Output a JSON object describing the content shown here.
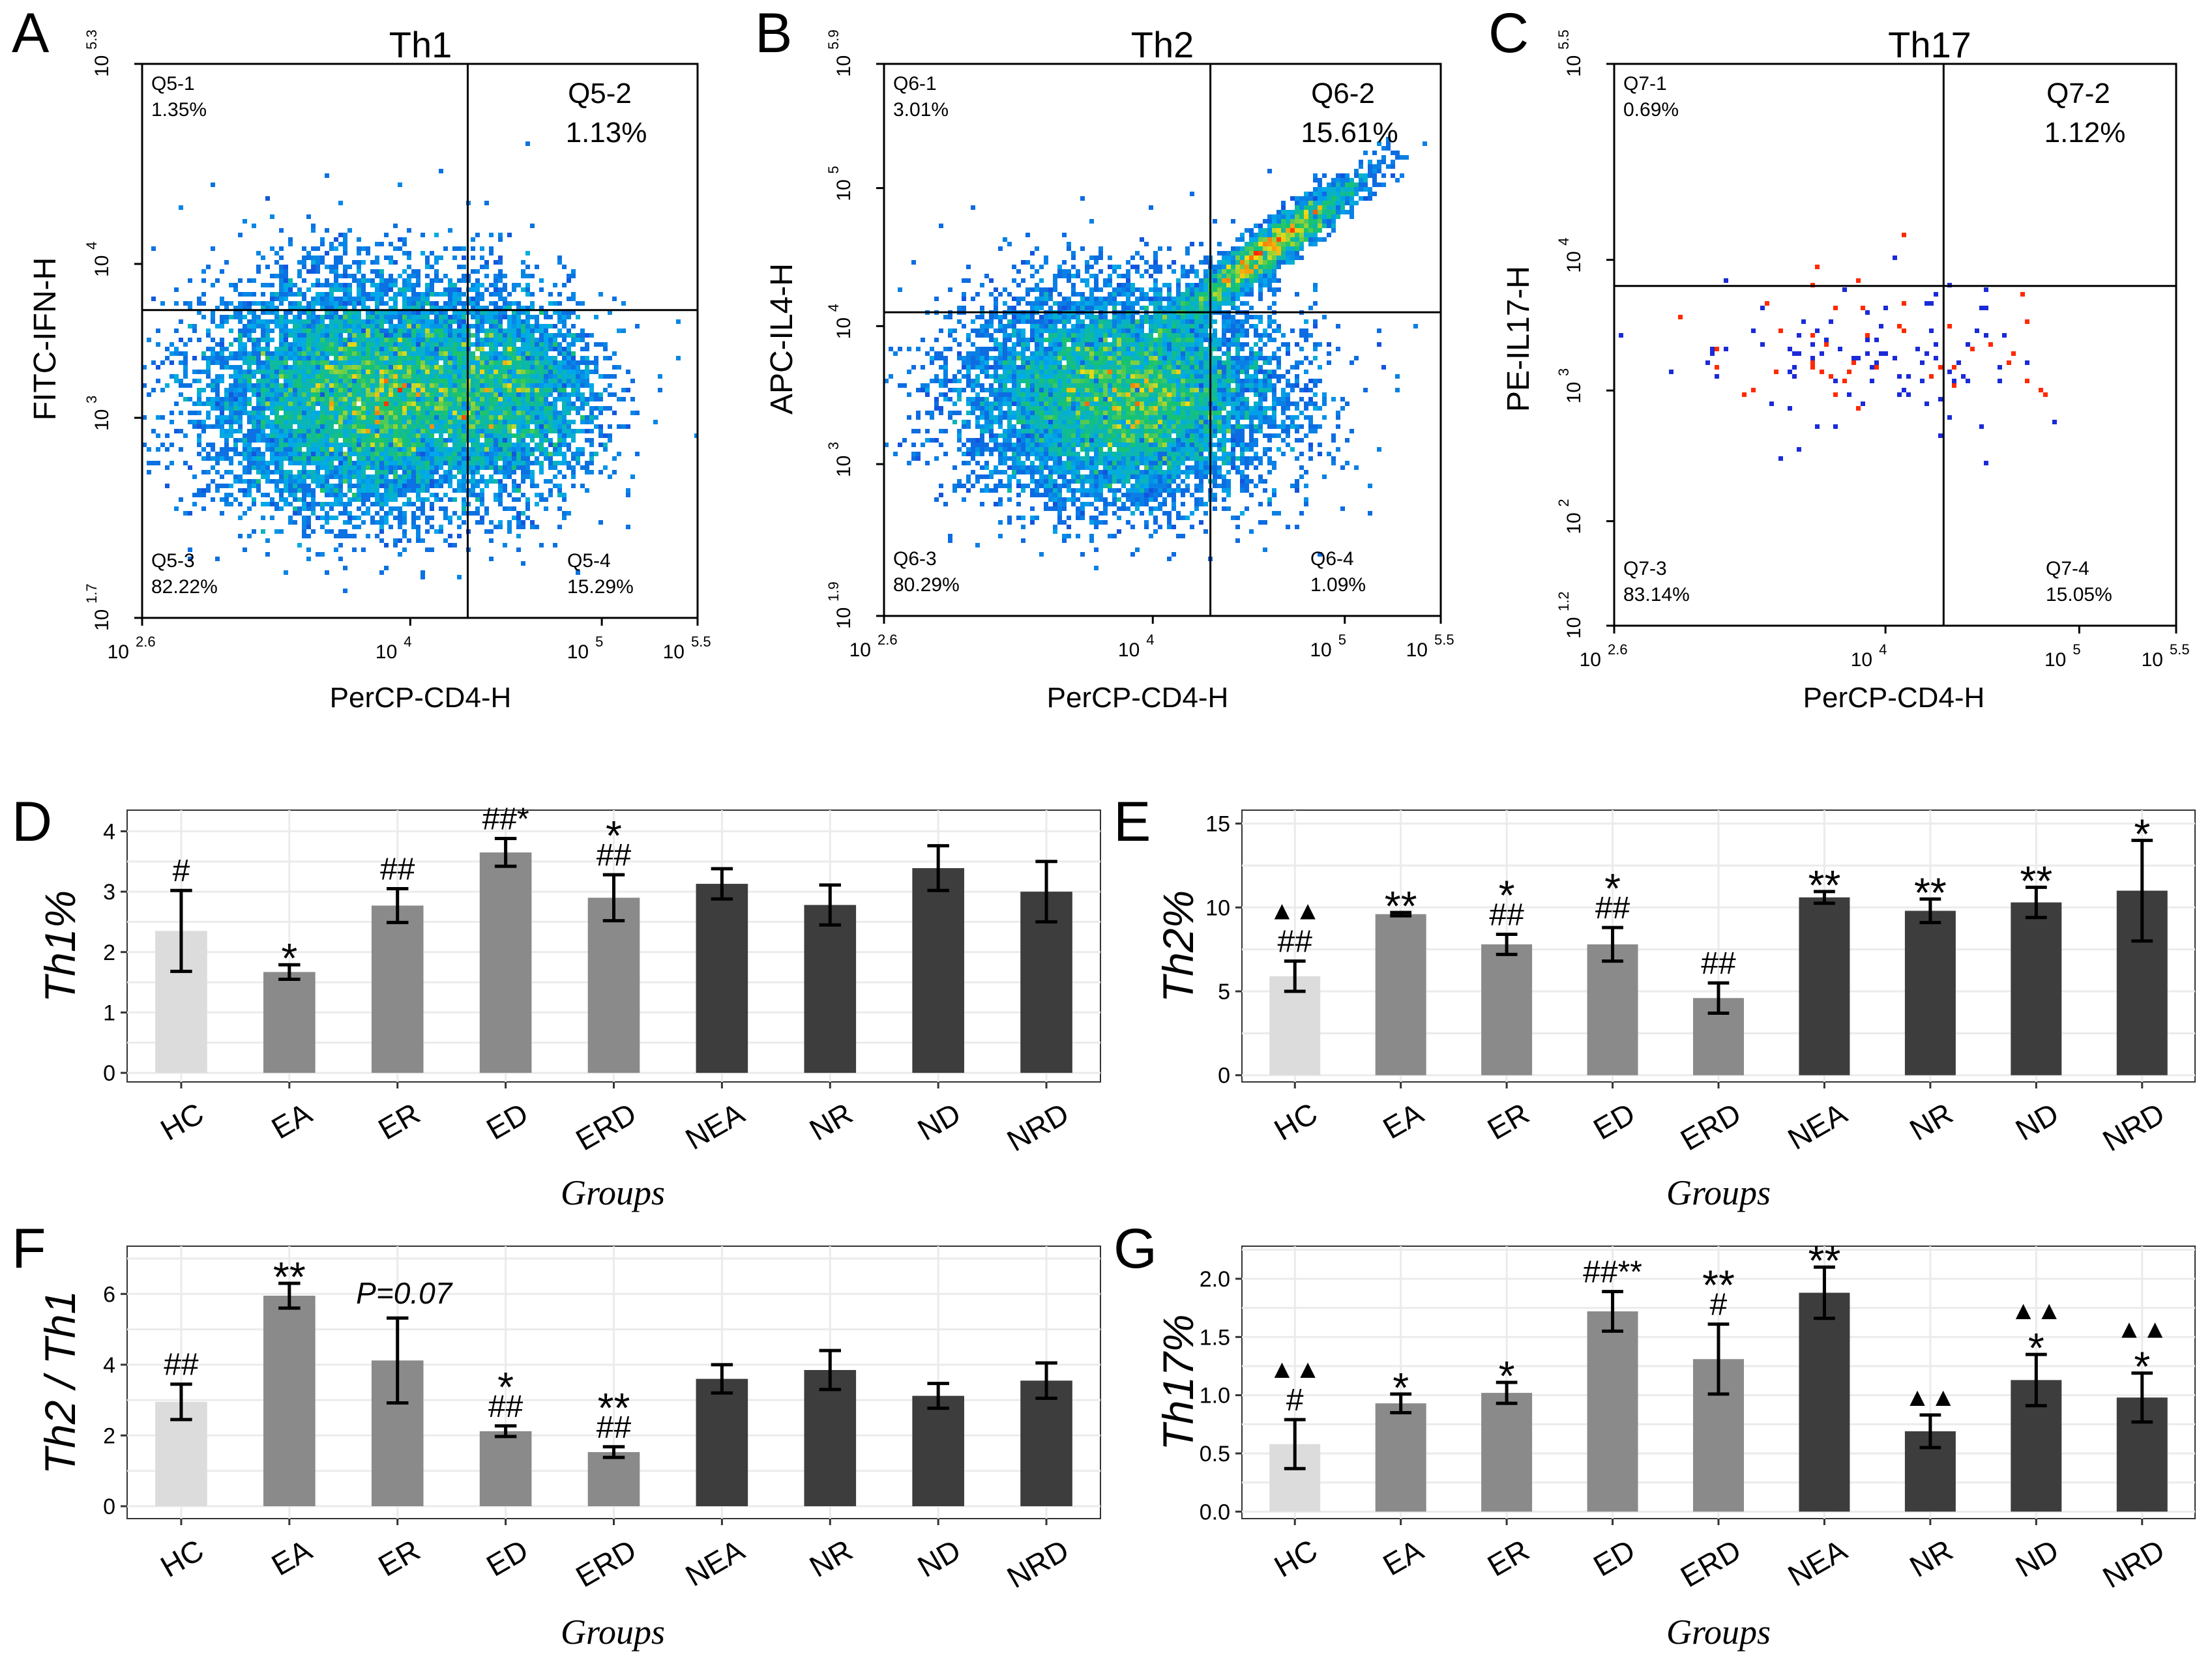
{
  "colors": {
    "HC": "#dcdcdc",
    "early": "#8a8a8a",
    "nonEarly": "#3d3d3d",
    "grid": "#ebebeb",
    "flowLow": "#1f1fd6",
    "flowMid": "#19c46c",
    "flowHigh": "#ff2a00"
  },
  "chart_data": [
    {
      "panel": "A",
      "type": "scatter",
      "title": "Th1",
      "xlabel": "PerCP-CD4-H",
      "ylabel": "FITC-IFN-H",
      "xticks": [
        {
          "base": "10",
          "exp": "2.6"
        },
        {
          "base": "10",
          "exp": "4"
        },
        {
          "base": "10",
          "exp": "5"
        },
        {
          "base": "10",
          "exp": "5.5"
        }
      ],
      "yticks": [
        {
          "base": "10",
          "exp": "1.7"
        },
        {
          "base": "10",
          "exp": "3"
        },
        {
          "base": "10",
          "exp": "4"
        },
        {
          "base": "10",
          "exp": "5.3"
        }
      ],
      "xlim": [
        2.6,
        5.5
      ],
      "ylim": [
        1.7,
        5.3
      ],
      "xticks_val": [
        2.6,
        4,
        5,
        5.5
      ],
      "yticks_val": [
        1.7,
        3,
        4,
        5.3
      ],
      "gate": [
        4.3,
        3.7
      ],
      "quadrants": [
        {
          "name": "Q5-1",
          "value": "1.35%",
          "pos": "top-left",
          "big": false
        },
        {
          "name": "Q5-2",
          "value": "1.13%",
          "pos": "top-right",
          "big": true
        },
        {
          "name": "Q5-3",
          "value": "82.22%",
          "pos": "bottom-left",
          "big": false
        },
        {
          "name": "Q5-4",
          "value": "15.29%",
          "pos": "bottom-right",
          "big": false
        }
      ],
      "clusters": [
        {
          "cx": 3.8,
          "cy": 3.15,
          "sx": 0.42,
          "sy": 0.38,
          "w": 0.8
        },
        {
          "cx": 4.55,
          "cy": 3.15,
          "sx": 0.22,
          "sy": 0.3,
          "w": 0.2
        }
      ]
    },
    {
      "panel": "B",
      "type": "scatter",
      "title": "Th2",
      "xlabel": "PerCP-CD4-H",
      "ylabel": "APC-IL4-H",
      "xticks": [
        {
          "base": "10",
          "exp": "2.6"
        },
        {
          "base": "10",
          "exp": "4"
        },
        {
          "base": "10",
          "exp": "5"
        },
        {
          "base": "10",
          "exp": "5.5"
        }
      ],
      "yticks": [
        {
          "base": "10",
          "exp": "1.9"
        },
        {
          "base": "10",
          "exp": "3"
        },
        {
          "base": "10",
          "exp": "4"
        },
        {
          "base": "10",
          "exp": "5"
        },
        {
          "base": "10",
          "exp": "5.9"
        }
      ],
      "xlim": [
        2.6,
        5.5
      ],
      "ylim": [
        1.9,
        5.9
      ],
      "xticks_val": [
        2.6,
        4,
        5,
        5.5
      ],
      "yticks_val": [
        1.9,
        3,
        4,
        5,
        5.9
      ],
      "gate": [
        4.3,
        4.1
      ],
      "quadrants": [
        {
          "name": "Q6-1",
          "value": "3.01%",
          "pos": "top-left",
          "big": false
        },
        {
          "name": "Q6-2",
          "value": "15.61%",
          "pos": "top-right",
          "big": true
        },
        {
          "name": "Q6-3",
          "value": "80.29%",
          "pos": "bottom-left",
          "big": false
        },
        {
          "name": "Q6-4",
          "value": "1.09%",
          "pos": "bottom-right",
          "big": false
        }
      ],
      "clusters": [
        {
          "cx": 3.85,
          "cy": 3.5,
          "sx": 0.4,
          "sy": 0.38,
          "w": 0.8
        },
        {
          "cx": 4.6,
          "cy": 4.55,
          "sx": 0.25,
          "sy": 0.28,
          "w": 0.2
        }
      ]
    },
    {
      "panel": "C",
      "type": "scatter",
      "title": "Th17",
      "xlabel": "PerCP-CD4-H",
      "ylabel": "PE-IL17-H",
      "xticks": [
        {
          "base": "10",
          "exp": "2.6"
        },
        {
          "base": "10",
          "exp": "4"
        },
        {
          "base": "10",
          "exp": "5"
        },
        {
          "base": "10",
          "exp": "5.5"
        }
      ],
      "yticks": [
        {
          "base": "10",
          "exp": "1.2"
        },
        {
          "base": "10",
          "exp": "2"
        },
        {
          "base": "10",
          "exp": "3"
        },
        {
          "base": "10",
          "exp": "4"
        },
        {
          "base": "10",
          "exp": "5.5"
        }
      ],
      "xlim": [
        2.6,
        5.5
      ],
      "ylim": [
        1.2,
        5.5
      ],
      "xticks_val": [
        2.6,
        4,
        5,
        5.5
      ],
      "yticks_val": [
        1.2,
        2,
        3,
        4,
        5.5
      ],
      "gate": [
        4.3,
        3.8
      ],
      "quadrants": [
        {
          "name": "Q7-1",
          "value": "0.69%",
          "pos": "top-left",
          "big": false
        },
        {
          "name": "Q7-2",
          "value": "1.12%",
          "pos": "top-right",
          "big": true
        },
        {
          "name": "Q7-3",
          "value": "83.14%",
          "pos": "bottom-left",
          "big": false
        },
        {
          "name": "Q7-4",
          "value": "15.05%",
          "pos": "bottom-right",
          "big": false
        }
      ],
      "clusters": [
        {
          "cx": 3.85,
          "cy": 3.3,
          "sx": 0.42,
          "sy": 0.33,
          "w": 0.8
        },
        {
          "cx": 4.6,
          "cy": 3.3,
          "sx": 0.2,
          "sy": 0.28,
          "w": 0.2
        }
      ]
    },
    {
      "panel": "D",
      "type": "bar",
      "ylabel": "Th1%",
      "xlabel": "Groups",
      "categories": [
        "HC",
        "EA",
        "ER",
        "ED",
        "ERD",
        "NEA",
        "NR",
        "ND",
        "NRD"
      ],
      "values": [
        2.35,
        1.67,
        2.77,
        3.65,
        2.9,
        3.13,
        2.78,
        3.39,
        3.0
      ],
      "errors": [
        0.67,
        0.12,
        0.28,
        0.23,
        0.38,
        0.25,
        0.33,
        0.37,
        0.5
      ],
      "groups": [
        "hc",
        "early",
        "early",
        "early",
        "early",
        "non",
        "non",
        "non",
        "non"
      ],
      "ylim": [
        -0.15,
        4.35
      ],
      "yticks": [
        0,
        1,
        2,
        3,
        4
      ],
      "annotations": [
        [
          "#"
        ],
        [
          "*"
        ],
        [
          "##"
        ],
        [
          "##*"
        ],
        [
          "*",
          "##"
        ],
        [],
        [],
        [],
        []
      ],
      "note": null
    },
    {
      "panel": "E",
      "type": "bar",
      "ylabel": "Th2%",
      "xlabel": "Groups",
      "categories": [
        "HC",
        "EA",
        "ER",
        "ED",
        "ERD",
        "NEA",
        "NR",
        "ND",
        "NRD"
      ],
      "values": [
        5.9,
        9.6,
        7.8,
        7.8,
        4.6,
        10.6,
        9.8,
        10.3,
        11.0
      ],
      "errors": [
        0.9,
        0.1,
        0.6,
        1.0,
        0.9,
        0.35,
        0.7,
        0.9,
        3.0
      ],
      "groups": [
        "hc",
        "early",
        "early",
        "early",
        "early",
        "non",
        "non",
        "non",
        "non"
      ],
      "ylim": [
        -0.4,
        15.8
      ],
      "yticks": [
        0,
        5,
        10,
        15
      ],
      "annotations": [
        [
          "▲▲",
          "##"
        ],
        [
          "**"
        ],
        [
          "*",
          "##"
        ],
        [
          "*",
          "##"
        ],
        [
          "##"
        ],
        [
          "**"
        ],
        [
          "**"
        ],
        [
          "**"
        ],
        [
          "*"
        ]
      ],
      "note": null
    },
    {
      "panel": "F",
      "type": "bar",
      "ylabel": "Th2 / Th1",
      "xlabel": "Groups",
      "categories": [
        "HC",
        "EA",
        "ER",
        "ED",
        "ERD",
        "NEA",
        "NR",
        "ND",
        "NRD"
      ],
      "values": [
        2.95,
        5.95,
        4.12,
        2.12,
        1.53,
        3.6,
        3.85,
        3.12,
        3.55
      ],
      "errors": [
        0.5,
        0.35,
        1.2,
        0.15,
        0.15,
        0.4,
        0.55,
        0.35,
        0.5
      ],
      "groups": [
        "hc",
        "early",
        "early",
        "early",
        "early",
        "non",
        "non",
        "non",
        "non"
      ],
      "ylim": [
        -0.35,
        7.35
      ],
      "yticks": [
        0,
        2,
        4,
        6
      ],
      "annotations": [
        [
          "##"
        ],
        [
          "**"
        ],
        [],
        [
          "*",
          "##"
        ],
        [
          "**",
          "##"
        ],
        [],
        [],
        [],
        []
      ],
      "note": "P=0.07"
    },
    {
      "panel": "G",
      "type": "bar",
      "ylabel": "Th17%",
      "xlabel": "Groups",
      "categories": [
        "HC",
        "EA",
        "ER",
        "ED",
        "ERD",
        "NEA",
        "NR",
        "ND",
        "NRD"
      ],
      "values": [
        0.58,
        0.93,
        1.02,
        1.72,
        1.31,
        1.88,
        0.69,
        1.13,
        0.98
      ],
      "errors": [
        0.21,
        0.08,
        0.09,
        0.17,
        0.3,
        0.22,
        0.14,
        0.22,
        0.21
      ],
      "groups": [
        "hc",
        "early",
        "early",
        "early",
        "early",
        "non",
        "non",
        "non",
        "non"
      ],
      "ylim": [
        -0.06,
        2.28
      ],
      "yticks": [
        0.0,
        0.5,
        1.0,
        1.5,
        2.0
      ],
      "annotations": [
        [
          "▲▲",
          "#"
        ],
        [
          "*"
        ],
        [
          "*"
        ],
        [
          "##**"
        ],
        [
          "**",
          "#"
        ],
        [
          "**"
        ],
        [
          "▲▲"
        ],
        [
          "▲▲",
          "*"
        ],
        [
          "▲▲",
          "*"
        ]
      ],
      "note": null
    }
  ]
}
